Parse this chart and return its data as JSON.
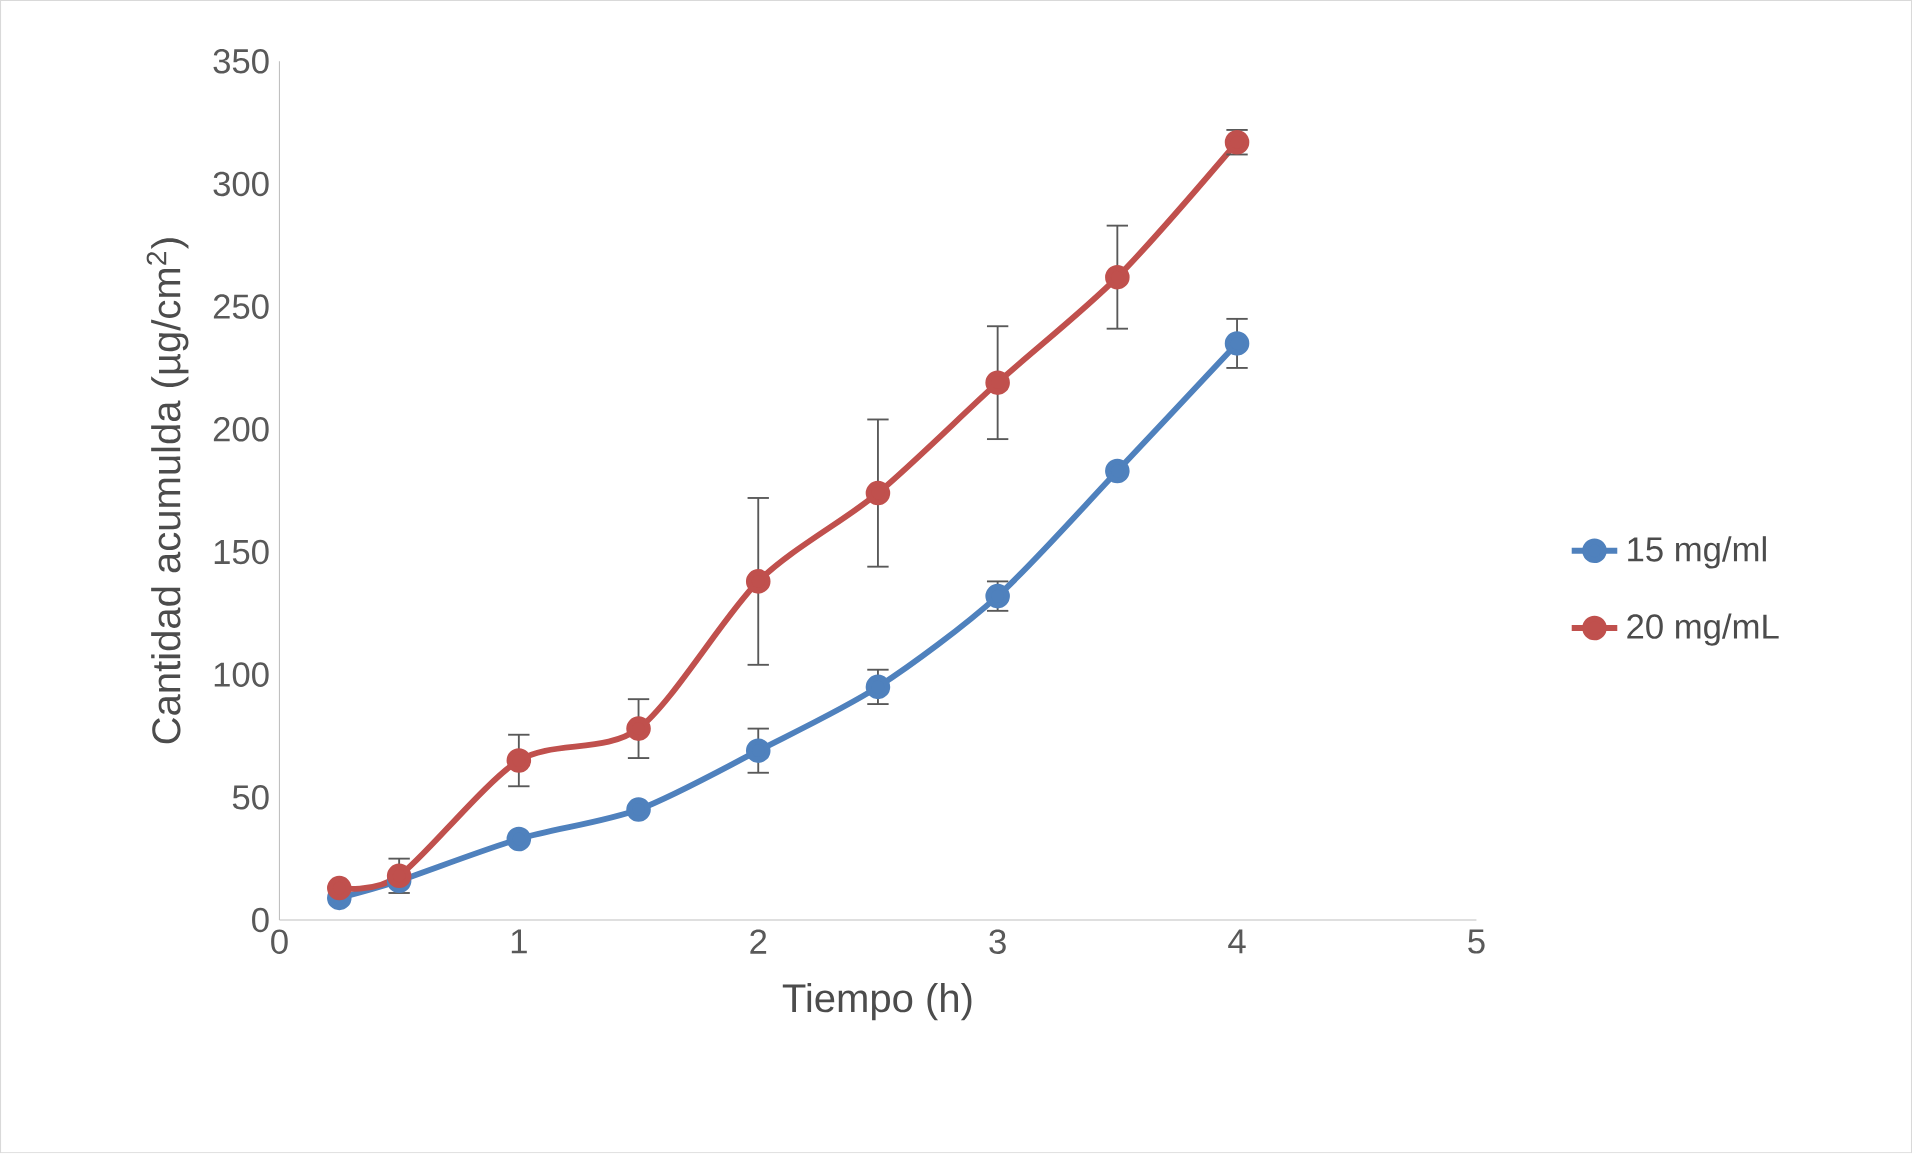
{
  "chart_data": {
    "type": "line",
    "xlabel": "Tiempo (h)",
    "ylabel": "Cantidad acumulda (µg/cm$^{2}$)",
    "x": [
      0.25,
      0.5,
      1,
      1.5,
      2,
      2.5,
      3,
      3.5,
      4
    ],
    "series": [
      {
        "name": "15 mg/ml",
        "color": "#4f81bd",
        "values": [
          9,
          16,
          33,
          45,
          69,
          95,
          132,
          183,
          235
        ],
        "errors": [
          null,
          null,
          null,
          null,
          9,
          7,
          6,
          null,
          10
        ]
      },
      {
        "name": "20 mg/mL",
        "color": "#c0504d",
        "values": [
          13,
          18,
          65,
          78,
          138,
          174,
          219,
          262,
          317
        ],
        "errors": [
          null,
          7,
          10.5,
          12,
          34,
          30,
          23,
          21,
          5
        ]
      }
    ],
    "xlim": [
      0,
      5
    ],
    "xticks": [
      0,
      1,
      2,
      3,
      4,
      5
    ],
    "ylim": [
      0,
      350
    ],
    "yticks": [
      0,
      50,
      100,
      150,
      200,
      250,
      300,
      350
    ],
    "legend": "right",
    "grid": false,
    "marker": "circle",
    "line_style": "solid"
  }
}
